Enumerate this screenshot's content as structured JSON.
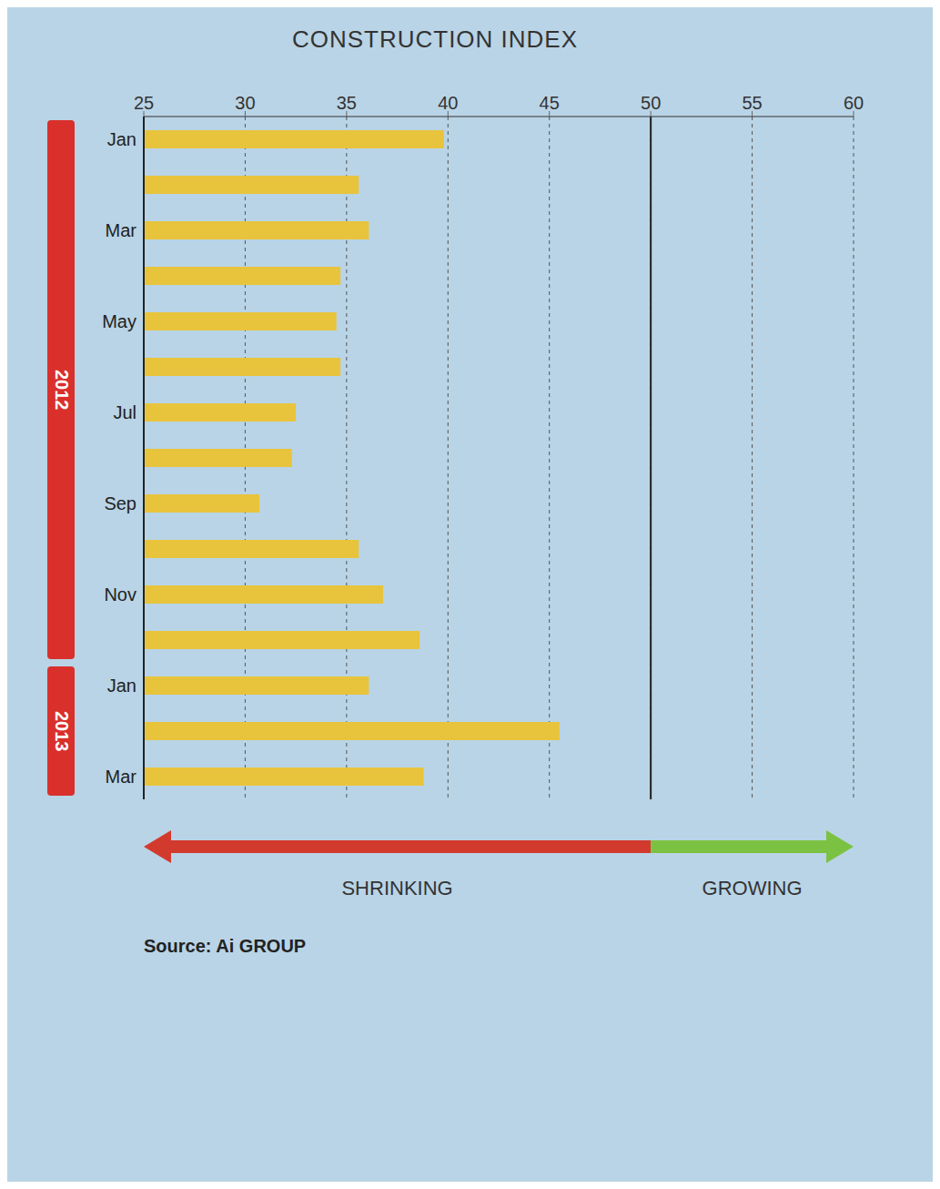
{
  "chart_data": {
    "type": "bar",
    "title": "CONSTRUCTION INDEX",
    "orientation": "horizontal",
    "categories": [
      "Jan",
      null,
      "Mar",
      null,
      "May",
      null,
      "Jul",
      null,
      "Sep",
      null,
      "Nov",
      null,
      "Jan",
      null,
      "Mar"
    ],
    "values": [
      39.8,
      35.6,
      36.1,
      34.7,
      34.5,
      34.7,
      32.5,
      32.3,
      30.7,
      35.6,
      36.8,
      38.6,
      36.1,
      45.5,
      38.8
    ],
    "color": "#e8c43c",
    "ylim": [
      25,
      60
    ],
    "yticks": [
      25,
      30,
      35,
      40,
      45,
      50,
      55,
      60
    ],
    "grid": true,
    "reference_line": 50,
    "years": [
      "2012",
      "2013"
    ],
    "annotations": [
      {
        "text": "SHRINKING",
        "color": "#d23a2e"
      },
      {
        "text": "GROWING",
        "color": "#7cc242"
      }
    ],
    "source": "Source: Ai GROUP"
  }
}
